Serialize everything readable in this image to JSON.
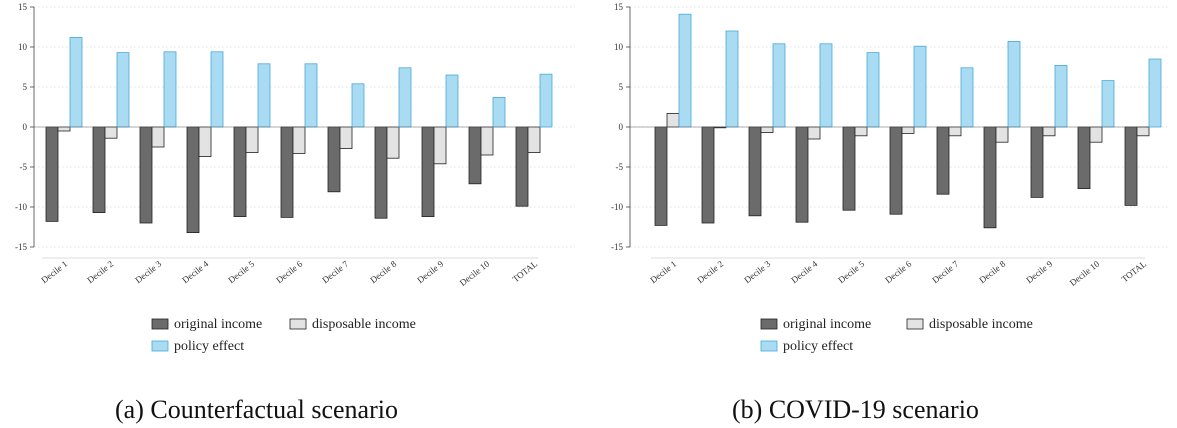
{
  "chart_data": [
    {
      "type": "bar",
      "caption": "(a) Counterfactual scenario",
      "categories": [
        "Decile 1",
        "Decile 2",
        "Decile 3",
        "Decile 4",
        "Decile 5",
        "Decile 6",
        "Decile 7",
        "Decile 8",
        "Decile 9",
        "Decile 10",
        "TOTAL"
      ],
      "series": [
        {
          "name": "original income",
          "color": "#6b6b6b",
          "values": [
            -11.8,
            -10.7,
            -12.0,
            -13.2,
            -11.2,
            -11.3,
            -8.1,
            -11.4,
            -11.2,
            -7.1,
            -9.9
          ]
        },
        {
          "name": "disposable income",
          "color": "#e3e3e3",
          "values": [
            -0.5,
            -1.4,
            -2.5,
            -3.7,
            -3.2,
            -3.3,
            -2.7,
            -3.9,
            -4.6,
            -3.5,
            -3.2
          ]
        },
        {
          "name": "policy effect",
          "color": "#a9dcf3",
          "values": [
            11.2,
            9.3,
            9.4,
            9.4,
            7.9,
            7.9,
            5.4,
            7.4,
            6.5,
            3.7,
            6.6
          ]
        }
      ],
      "yticks": [
        15,
        10,
        5,
        0,
        -5,
        -10,
        -15
      ],
      "ylim": [
        -15,
        15
      ],
      "grid": true,
      "legend_position": "bottom"
    },
    {
      "type": "bar",
      "caption": "(b) COVID-19 scenario",
      "categories": [
        "Decile 1",
        "Decile 2",
        "Decile 3",
        "Decile 4",
        "Decile 5",
        "Decile 6",
        "Decile 7",
        "Decile 8",
        "Decile 9",
        "Decile 10",
        "TOTAL"
      ],
      "series": [
        {
          "name": "original income",
          "color": "#6b6b6b",
          "values": [
            -12.3,
            -12.0,
            -11.1,
            -11.9,
            -10.4,
            -10.9,
            -8.4,
            -12.6,
            -8.8,
            -7.7,
            -9.8
          ]
        },
        {
          "name": "disposable income",
          "color": "#e3e3e3",
          "values": [
            1.7,
            0.0,
            -0.7,
            -1.5,
            -1.1,
            -0.8,
            -1.1,
            -1.9,
            -1.1,
            -1.9,
            -1.1
          ]
        },
        {
          "name": "policy effect",
          "color": "#a9dcf3",
          "values": [
            14.1,
            12.0,
            10.4,
            10.4,
            9.3,
            10.1,
            7.4,
            10.7,
            7.7,
            5.8,
            8.5
          ]
        }
      ],
      "yticks": [
        15,
        10,
        5,
        0,
        -5,
        -10,
        -15
      ],
      "ylim": [
        -15,
        15
      ],
      "grid": true,
      "legend_position": "bottom"
    }
  ]
}
